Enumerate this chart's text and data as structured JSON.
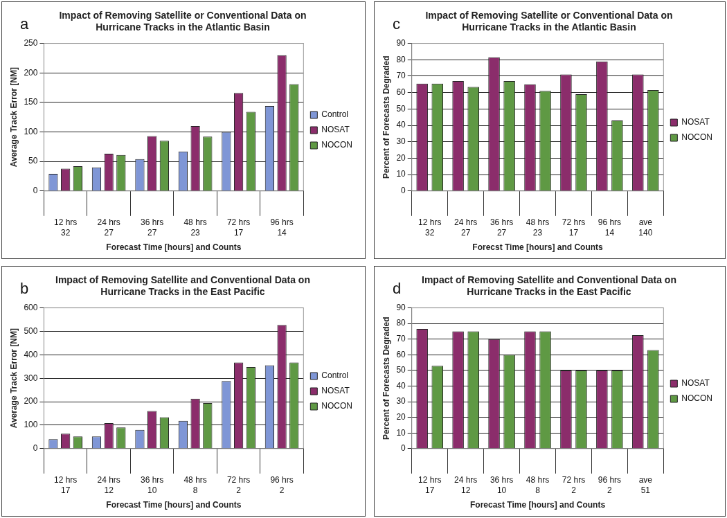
{
  "chart_data": [
    {
      "type": "bar",
      "title": "Impact of Removing Satellite or Conventional Data on\nHurricane Tracks in the Atlantic Basin",
      "annotations": [
        "a"
      ],
      "xlabel": "Forecast Time [hours] and Counts",
      "ylabel": "Average Track Error [NM]",
      "categories": [
        "12 hrs\n32",
        "24 hrs\n27",
        "36 hrs\n27",
        "48 hrs\n23",
        "72 hrs\n17",
        "96 hrs\n14"
      ],
      "series": [
        {
          "name": "Control",
          "color": "#7f96d6",
          "values": [
            29,
            40,
            54,
            67,
            100,
            144
          ]
        },
        {
          "name": "NOSAT",
          "color": "#8b2d6b",
          "values": [
            38,
            63,
            93,
            110,
            166,
            230
          ]
        },
        {
          "name": "NOCON",
          "color": "#5f9944",
          "values": [
            42,
            61,
            85,
            92,
            134,
            181
          ]
        }
      ],
      "ylim": [
        0,
        250
      ],
      "yticks": [
        0,
        50,
        100,
        150,
        200,
        250
      ],
      "grid": "y",
      "legend": "right"
    },
    {
      "type": "bar",
      "title": "Impact of Removing Satellite or Conventional Data on\nHurricane Tracks in the Atlantic Basin",
      "annotations": [
        "c"
      ],
      "xlabel": "Forecst Time [hours] and Counts",
      "ylabel": "Percent of Forecasts Degraded",
      "categories": [
        "12 hrs\n32",
        "24 hrs\n27",
        "36 hrs\n27",
        "48 hrs\n23",
        "72 hrs\n17",
        "96 hrs\n14",
        "ave\n140"
      ],
      "series": [
        {
          "name": "NOSAT",
          "color": "#8b2d6b",
          "values": [
            65.5,
            67,
            81.5,
            65,
            71,
            79,
            71
          ]
        },
        {
          "name": "NOCON",
          "color": "#5f9944",
          "values": [
            65.5,
            63.5,
            67,
            61,
            59,
            43,
            61.5
          ]
        }
      ],
      "ylim": [
        0,
        90
      ],
      "yticks": [
        0,
        10,
        20,
        30,
        40,
        50,
        60,
        70,
        80,
        90
      ],
      "grid": "y",
      "legend": "right"
    },
    {
      "type": "bar",
      "title": "Impact of Removing Satellite and Conventional Data on\nHurricane Tracks in the East Pacific",
      "annotations": [
        "b"
      ],
      "xlabel": "Forecast Time [hours] and Counts",
      "ylabel": "Average Track Error [NM]",
      "categories": [
        "12 hrs\n17",
        "24 hrs\n12",
        "36 hrs\n10",
        "48 hrs\n8",
        "72 hrs\n2",
        "96 hrs\n2"
      ],
      "series": [
        {
          "name": "Control",
          "color": "#7f96d6",
          "values": [
            40,
            52,
            80,
            118,
            288,
            355
          ]
        },
        {
          "name": "NOSAT",
          "color": "#8b2d6b",
          "values": [
            64,
            109,
            160,
            213,
            367,
            527
          ]
        },
        {
          "name": "NOCON",
          "color": "#5f9944",
          "values": [
            52,
            90,
            134,
            194,
            348,
            367
          ]
        }
      ],
      "ylim": [
        0,
        600
      ],
      "yticks": [
        0,
        100,
        200,
        300,
        400,
        500,
        600
      ],
      "grid": "y",
      "legend": "right"
    },
    {
      "type": "bar",
      "title": "Impact of Removing Satellite and Conventional Data on\nHurricane Tracks in the East Pacific",
      "annotations": [
        "d"
      ],
      "xlabel": "Forecast Time [hours] and Counts",
      "ylabel": "Percent of Forecasts Degraded",
      "categories": [
        "12 hrs\n17",
        "24 hrs\n12",
        "36 hrs\n10",
        "48 hrs\n8",
        "72 hrs\n2",
        "96 hrs\n2",
        "ave\n51"
      ],
      "series": [
        {
          "name": "NOSAT",
          "color": "#8b2d6b",
          "values": [
            76.5,
            75,
            70,
            75,
            50,
            50,
            72.5
          ]
        },
        {
          "name": "NOCON",
          "color": "#5f9944",
          "values": [
            53,
            75,
            60,
            75,
            50,
            50,
            63
          ]
        }
      ],
      "ylim": [
        0,
        90
      ],
      "yticks": [
        0,
        10,
        20,
        30,
        40,
        50,
        60,
        70,
        80,
        90
      ],
      "grid": "y",
      "legend": "right"
    }
  ]
}
